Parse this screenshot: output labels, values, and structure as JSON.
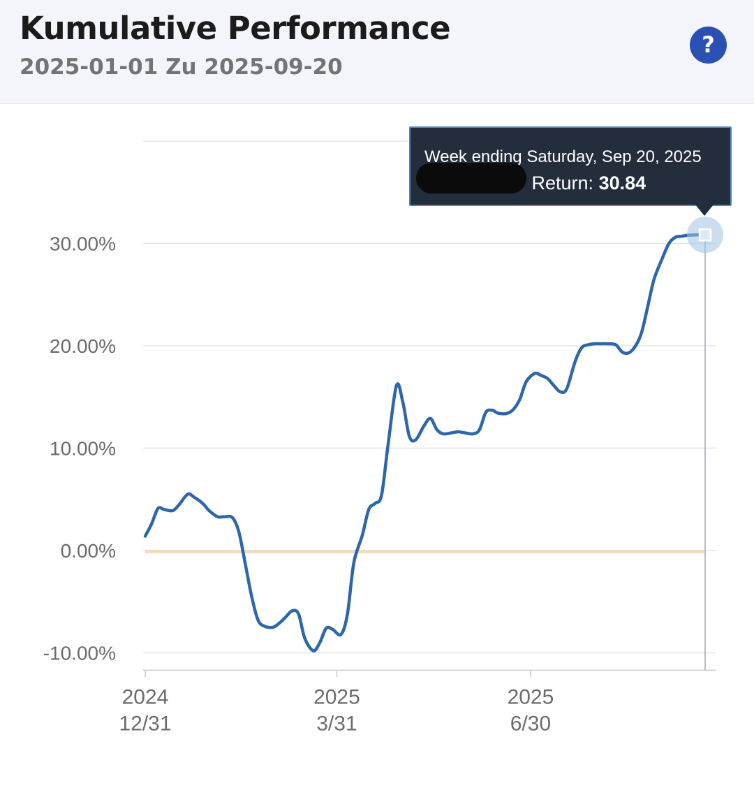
{
  "header": {
    "title": "Kumulative Performance",
    "date_range": "2025-01-01 Zu 2025-09-20",
    "help_label": "?"
  },
  "tooltip": {
    "heading": "Week ending Saturday, Sep 20, 2025",
    "return_label": "Return:",
    "return_value": "30.84"
  },
  "colors": {
    "series": "#2d66ab",
    "baseline": "#f1ddb6",
    "grid": "#e3e5ea",
    "tooltip_bg": "#232d3c",
    "help_button": "#2a50b4"
  },
  "chart_data": {
    "type": "line",
    "y_tick_labels": [
      "30.00%",
      "20.00%",
      "10.00%",
      "0.00%",
      "-10.00%"
    ],
    "y_ticks": [
      30,
      20,
      10,
      0,
      -10
    ],
    "ylim": [
      -11.7,
      40
    ],
    "x_range": [
      "2024-12-31",
      "2025-09-20"
    ],
    "x_ticks": [
      {
        "date": "2024-12-31",
        "line1": "2024",
        "line2": "12/31"
      },
      {
        "date": "2025-03-31",
        "line1": "2025",
        "line2": "3/31"
      },
      {
        "date": "2025-06-30",
        "line1": "2025",
        "line2": "6/30"
      }
    ],
    "grid": true,
    "series": [
      {
        "points": [
          [
            "2024-12-31",
            1.4
          ],
          [
            "2025-01-03",
            2.6
          ],
          [
            "2025-01-06",
            4.1
          ],
          [
            "2025-01-09",
            4.0
          ],
          [
            "2025-01-13",
            3.9
          ],
          [
            "2025-01-16",
            4.5
          ],
          [
            "2025-01-20",
            5.5
          ],
          [
            "2025-01-23",
            5.2
          ],
          [
            "2025-01-27",
            4.6
          ],
          [
            "2025-01-30",
            3.9
          ],
          [
            "2025-02-03",
            3.3
          ],
          [
            "2025-02-06",
            3.3
          ],
          [
            "2025-02-10",
            3.2
          ],
          [
            "2025-02-13",
            1.8
          ],
          [
            "2025-02-16",
            -1.3
          ],
          [
            "2025-02-19",
            -4.5
          ],
          [
            "2025-02-22",
            -6.8
          ],
          [
            "2025-02-25",
            -7.4
          ],
          [
            "2025-03-01",
            -7.5
          ],
          [
            "2025-03-04",
            -7.1
          ],
          [
            "2025-03-07",
            -6.5
          ],
          [
            "2025-03-10",
            -5.9
          ],
          [
            "2025-03-13",
            -6.2
          ],
          [
            "2025-03-16",
            -8.6
          ],
          [
            "2025-03-20",
            -9.8
          ],
          [
            "2025-03-23",
            -9.0
          ],
          [
            "2025-03-26",
            -7.6
          ],
          [
            "2025-03-29",
            -7.7
          ],
          [
            "2025-04-02",
            -8.2
          ],
          [
            "2025-04-05",
            -6.2
          ],
          [
            "2025-04-08",
            -1.2
          ],
          [
            "2025-04-12",
            1.5
          ],
          [
            "2025-04-15",
            4.0
          ],
          [
            "2025-04-18",
            4.6
          ],
          [
            "2025-04-21",
            5.4
          ],
          [
            "2025-04-24",
            10.2
          ],
          [
            "2025-04-28",
            16.1
          ],
          [
            "2025-05-01",
            14.5
          ],
          [
            "2025-05-04",
            11.2
          ],
          [
            "2025-05-07",
            10.8
          ],
          [
            "2025-05-11",
            12.2
          ],
          [
            "2025-05-14",
            12.9
          ],
          [
            "2025-05-17",
            11.8
          ],
          [
            "2025-05-20",
            11.4
          ],
          [
            "2025-05-24",
            11.5
          ],
          [
            "2025-05-27",
            11.6
          ],
          [
            "2025-05-30",
            11.5
          ],
          [
            "2025-06-03",
            11.4
          ],
          [
            "2025-06-06",
            11.8
          ],
          [
            "2025-06-09",
            13.5
          ],
          [
            "2025-06-12",
            13.7
          ],
          [
            "2025-06-15",
            13.4
          ],
          [
            "2025-06-19",
            13.4
          ],
          [
            "2025-06-22",
            13.8
          ],
          [
            "2025-06-25",
            14.8
          ],
          [
            "2025-06-28",
            16.5
          ],
          [
            "2025-07-02",
            17.3
          ],
          [
            "2025-07-05",
            17.1
          ],
          [
            "2025-07-08",
            16.8
          ],
          [
            "2025-07-11",
            16.1
          ],
          [
            "2025-07-14",
            15.5
          ],
          [
            "2025-07-17",
            15.8
          ],
          [
            "2025-07-21",
            18.5
          ],
          [
            "2025-07-24",
            19.8
          ],
          [
            "2025-07-27",
            20.1
          ],
          [
            "2025-07-30",
            20.2
          ],
          [
            "2025-08-02",
            20.2
          ],
          [
            "2025-08-05",
            20.2
          ],
          [
            "2025-08-09",
            20.1
          ],
          [
            "2025-08-12",
            19.4
          ],
          [
            "2025-08-15",
            19.3
          ],
          [
            "2025-08-18",
            19.9
          ],
          [
            "2025-08-21",
            21.2
          ],
          [
            "2025-08-24",
            23.8
          ],
          [
            "2025-08-27",
            26.5
          ],
          [
            "2025-08-31",
            28.6
          ],
          [
            "2025-09-03",
            30.0
          ],
          [
            "2025-09-06",
            30.6
          ],
          [
            "2025-09-09",
            30.7
          ],
          [
            "2025-09-12",
            30.8
          ],
          [
            "2025-09-16",
            30.84
          ],
          [
            "2025-09-20",
            30.84
          ]
        ]
      },
      {
        "role": "baseline",
        "points": [
          [
            "2024-12-31",
            -0.1
          ],
          [
            "2025-09-20",
            -0.1
          ]
        ]
      }
    ],
    "highlight": {
      "date": "2025-09-20",
      "value": 30.84
    }
  }
}
